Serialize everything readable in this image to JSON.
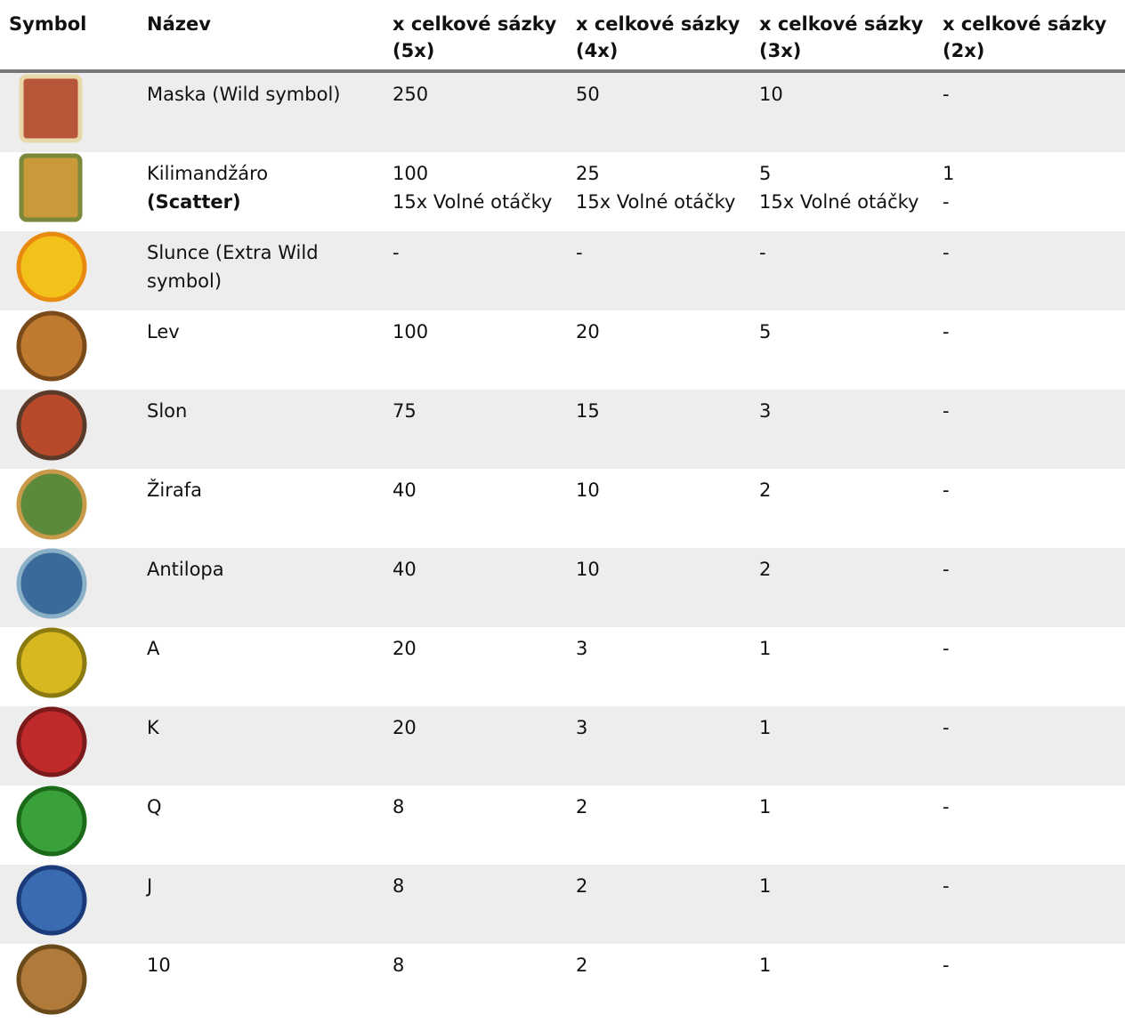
{
  "table": {
    "headers": [
      "Symbol",
      "Název",
      "x celkové sázky (5x)",
      "x celkové sázky (4x)",
      "x celkové sázky (3x)",
      "x celkové sázky (2x)"
    ],
    "rows": [
      {
        "name": "Maska (Wild symbol)",
        "values": [
          250,
          50,
          10,
          "-"
        ]
      },
      {
        "name": "Kilimandžáro",
        "note": "(Scatter)",
        "values": [
          100,
          25,
          5,
          1
        ],
        "extras": [
          "15x Volné otáčky",
          "15x Volné otáčky",
          "15x Volné otáčky",
          "-"
        ]
      },
      {
        "name": "Slunce (Extra Wild symbol)",
        "values": [
          "-",
          "-",
          "-",
          "-"
        ]
      },
      {
        "name": "Lev",
        "values": [
          100,
          20,
          5,
          "-"
        ]
      },
      {
        "name": "Slon",
        "values": [
          75,
          15,
          3,
          "-"
        ]
      },
      {
        "name": "Žirafa",
        "values": [
          40,
          10,
          2,
          "-"
        ]
      },
      {
        "name": "Antilopa",
        "values": [
          40,
          10,
          2,
          "-"
        ]
      },
      {
        "name": "A",
        "values": [
          20,
          3,
          1,
          "-"
        ]
      },
      {
        "name": "K",
        "values": [
          20,
          3,
          1,
          "-"
        ]
      },
      {
        "name": "Q",
        "values": [
          8,
          2,
          1,
          "-"
        ]
      },
      {
        "name": "J",
        "values": [
          8,
          2,
          1,
          "-"
        ]
      },
      {
        "name": "10",
        "values": [
          8,
          2,
          1,
          "-"
        ]
      }
    ]
  }
}
